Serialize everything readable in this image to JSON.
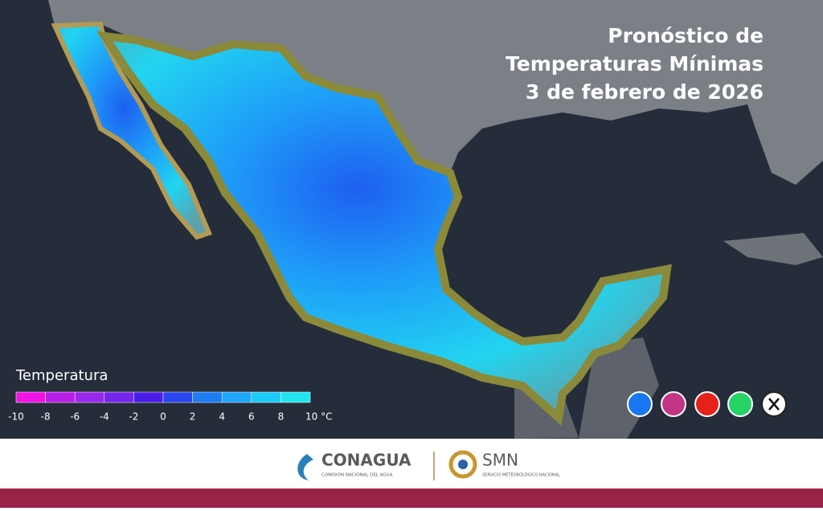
{
  "header": {
    "title_lines": [
      "Pronóstico de",
      "Temperaturas Mínimas",
      "3 de febrero de 2026"
    ]
  },
  "legend": {
    "title": "Temperatura",
    "ticks": [
      -10,
      -8,
      -6,
      -4,
      -2,
      0,
      2,
      4,
      6,
      8,
      {
        "value": 10,
        "label": "10 °C"
      }
    ],
    "colors": [
      "#ee14e6",
      "#b81ee8",
      "#9a28ea",
      "#7426ec",
      "#4a1ee6",
      "#2a46ee",
      "#1e7cf4",
      "#1ea6f8",
      "#1ecaf8",
      "#22e6ee"
    ]
  },
  "footer": {
    "logo_left": {
      "name": "CONAGUA",
      "subtitle": "COMISIÓN NACIONAL DEL AGUA"
    },
    "logo_right": {
      "name": "SMN",
      "subtitle": "SERVICIO METEOROLÓGICO NACIONAL"
    }
  }
}
